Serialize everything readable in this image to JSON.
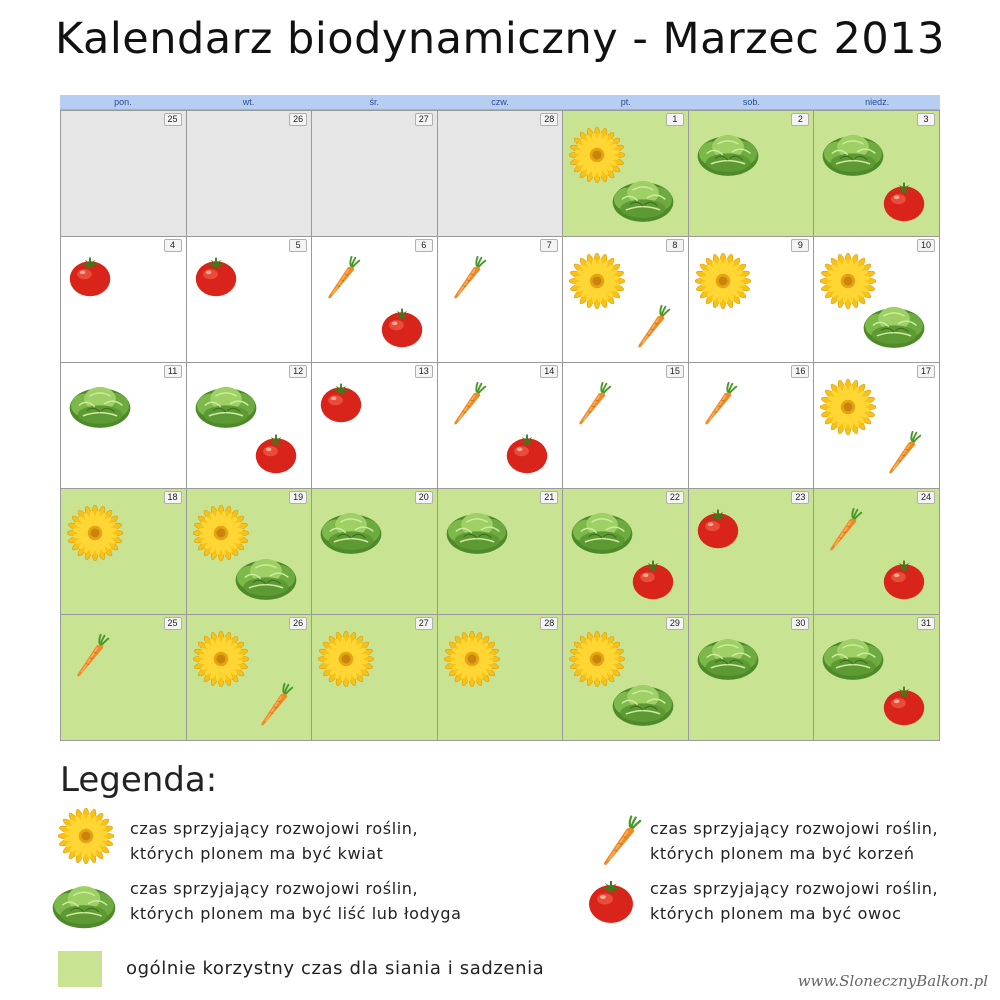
{
  "title": "Kalendarz biodynamiczny - Marzec 2013",
  "weekdays": [
    "pon.",
    "wt.",
    "śr.",
    "czw.",
    "pt.",
    "sob.",
    "niedz."
  ],
  "colors": {
    "good": "#c8e493",
    "other_month": "#e6e6e6",
    "header": "#b6cef2"
  },
  "weeks": [
    [
      {
        "day": "25",
        "type": "other",
        "icons": []
      },
      {
        "day": "26",
        "type": "other",
        "icons": []
      },
      {
        "day": "27",
        "type": "other",
        "icons": []
      },
      {
        "day": "28",
        "type": "other",
        "icons": []
      },
      {
        "day": "1",
        "type": "good",
        "icons": [
          "flower-icon",
          "lettuce-icon"
        ]
      },
      {
        "day": "2",
        "type": "good",
        "icons": [
          "lettuce-icon"
        ]
      },
      {
        "day": "3",
        "type": "good",
        "icons": [
          "lettuce-icon",
          "tomato-icon"
        ]
      }
    ],
    [
      {
        "day": "4",
        "type": "normal",
        "icons": [
          "tomato-icon"
        ]
      },
      {
        "day": "5",
        "type": "normal",
        "icons": [
          "tomato-icon"
        ]
      },
      {
        "day": "6",
        "type": "normal",
        "icons": [
          "carrot-icon",
          "tomato-icon"
        ]
      },
      {
        "day": "7",
        "type": "normal",
        "icons": [
          "carrot-icon"
        ]
      },
      {
        "day": "8",
        "type": "normal",
        "icons": [
          "flower-icon",
          "carrot-icon"
        ]
      },
      {
        "day": "9",
        "type": "normal",
        "icons": [
          "flower-icon"
        ]
      },
      {
        "day": "10",
        "type": "normal",
        "icons": [
          "flower-icon",
          "lettuce-icon"
        ]
      }
    ],
    [
      {
        "day": "11",
        "type": "normal",
        "icons": [
          "lettuce-icon"
        ]
      },
      {
        "day": "12",
        "type": "normal",
        "icons": [
          "lettuce-icon",
          "tomato-icon"
        ]
      },
      {
        "day": "13",
        "type": "normal",
        "icons": [
          "tomato-icon"
        ]
      },
      {
        "day": "14",
        "type": "normal",
        "icons": [
          "carrot-icon",
          "tomato-icon"
        ]
      },
      {
        "day": "15",
        "type": "normal",
        "icons": [
          "carrot-icon"
        ]
      },
      {
        "day": "16",
        "type": "normal",
        "icons": [
          "carrot-icon"
        ]
      },
      {
        "day": "17",
        "type": "normal",
        "icons": [
          "flower-icon",
          "carrot-icon"
        ]
      }
    ],
    [
      {
        "day": "18",
        "type": "good",
        "icons": [
          "flower-icon"
        ]
      },
      {
        "day": "19",
        "type": "good",
        "icons": [
          "flower-icon",
          "lettuce-icon"
        ]
      },
      {
        "day": "20",
        "type": "good",
        "icons": [
          "lettuce-icon"
        ]
      },
      {
        "day": "21",
        "type": "good",
        "icons": [
          "lettuce-icon"
        ]
      },
      {
        "day": "22",
        "type": "good",
        "icons": [
          "lettuce-icon",
          "tomato-icon"
        ]
      },
      {
        "day": "23",
        "type": "good",
        "icons": [
          "tomato-icon"
        ]
      },
      {
        "day": "24",
        "type": "good",
        "icons": [
          "carrot-icon",
          "tomato-icon"
        ]
      }
    ],
    [
      {
        "day": "25",
        "type": "good",
        "icons": [
          "carrot-icon"
        ]
      },
      {
        "day": "26",
        "type": "good",
        "icons": [
          "flower-icon",
          "carrot-icon"
        ]
      },
      {
        "day": "27",
        "type": "good",
        "icons": [
          "flower-icon"
        ]
      },
      {
        "day": "28",
        "type": "good",
        "icons": [
          "flower-icon"
        ]
      },
      {
        "day": "29",
        "type": "good",
        "icons": [
          "flower-icon",
          "lettuce-icon"
        ]
      },
      {
        "day": "30",
        "type": "good",
        "icons": [
          "lettuce-icon"
        ]
      },
      {
        "day": "31",
        "type": "good",
        "icons": [
          "lettuce-icon",
          "tomato-icon"
        ]
      }
    ]
  ],
  "legend": {
    "title": "Legenda:",
    "flower": {
      "icon": "flower-icon",
      "line1": "czas sprzyjający rozwojowi roślin,",
      "line2": "których plonem ma być kwiat"
    },
    "leaf": {
      "icon": "lettuce-icon",
      "line1": "czas sprzyjający rozwojowi roślin,",
      "line2": "których plonem ma być liść lub łodyga"
    },
    "root": {
      "icon": "carrot-icon",
      "line1": "czas sprzyjający rozwojowi roślin,",
      "line2": "których plonem ma być korzeń"
    },
    "fruit": {
      "icon": "tomato-icon",
      "line1": "czas sprzyjający rozwojowi roślin,",
      "line2": "których plonem ma być owoc"
    },
    "good_time": "ogólnie korzystny czas dla siania i sadzenia"
  },
  "website": "www.SlonecznyBalkon.pl"
}
